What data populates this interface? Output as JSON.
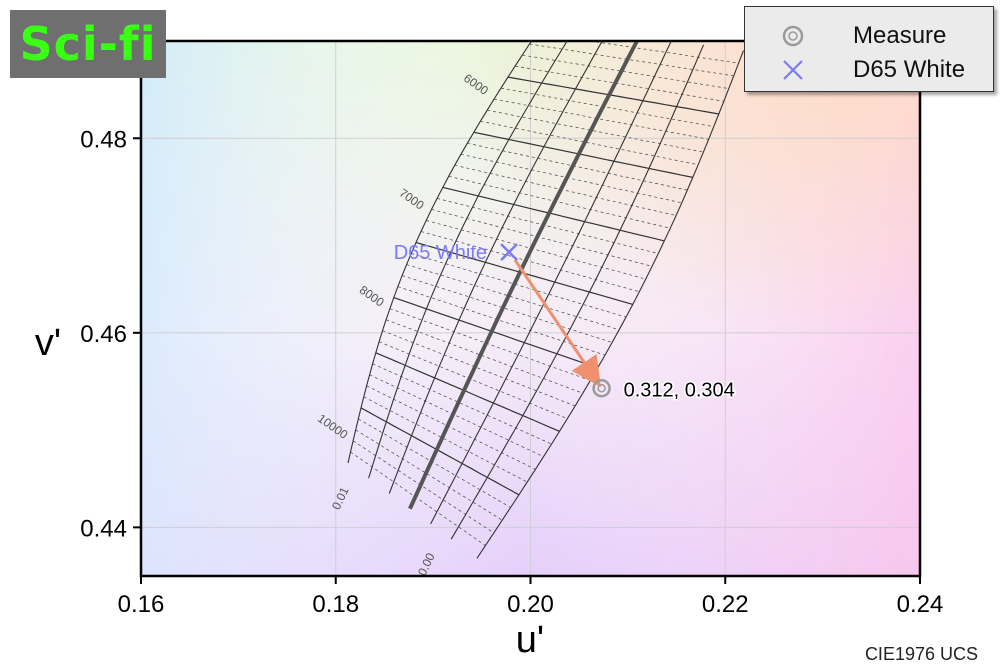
{
  "badge": {
    "label": "Sci-fi"
  },
  "legend": {
    "items": [
      {
        "label": "Measure",
        "icon": "ring-marker-icon",
        "color": "#9a9a9a"
      },
      {
        "label": "D65 White",
        "icon": "x-marker-icon",
        "color": "#7b7bf5"
      }
    ]
  },
  "caption": "CIE1976 UCS",
  "chart_data": {
    "type": "scatter",
    "title": "",
    "xlabel": "u'",
    "ylabel": "v'",
    "xlim": [
      0.16,
      0.24
    ],
    "ylim": [
      0.435,
      0.49
    ],
    "x_ticks": [
      "0.16",
      "0.18",
      "0.20",
      "0.22",
      "0.24"
    ],
    "y_ticks": [
      "0.44",
      "0.46",
      "0.48"
    ],
    "grid": true,
    "series": [
      {
        "name": "Measure",
        "points": [
          {
            "u": 0.2073,
            "v": 0.4543,
            "label": "0.312,  0.304"
          }
        ]
      },
      {
        "name": "D65 White",
        "points": [
          {
            "u": 0.1978,
            "v": 0.4683,
            "label": "D65 White"
          }
        ]
      }
    ],
    "isotherm_labels": [
      "6000",
      "7000",
      "8000",
      "10000"
    ],
    "duv_labels": [
      "0.01",
      "0.00"
    ],
    "colors": {
      "measure": "#9a9a9a",
      "d65": "#7b7bf5",
      "arrow": "#f0906c",
      "locus": "#555555"
    }
  }
}
